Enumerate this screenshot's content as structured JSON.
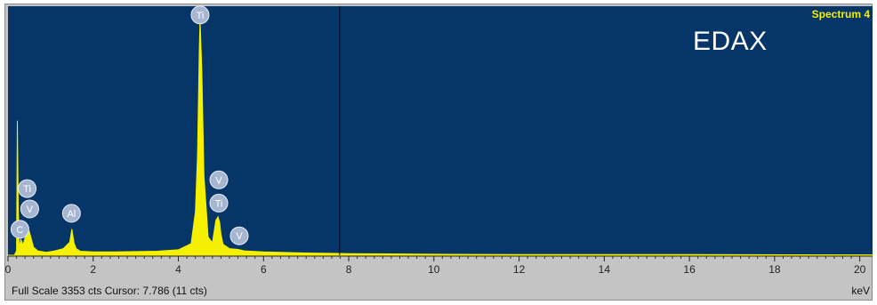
{
  "chart_data": {
    "type": "line",
    "title": "",
    "xlabel": "",
    "ylabel": "",
    "x_unit": "keV",
    "xlim": [
      0,
      20.3
    ],
    "ylim": [
      0,
      3353
    ],
    "xticks": [
      0,
      2,
      4,
      6,
      8,
      10,
      12,
      14,
      16,
      18,
      20
    ],
    "x": [
      0.0,
      0.15,
      0.2,
      0.22,
      0.24,
      0.26,
      0.28,
      0.3,
      0.35,
      0.4,
      0.45,
      0.5,
      0.55,
      0.6,
      0.7,
      0.9,
      1.1,
      1.3,
      1.45,
      1.5,
      1.55,
      1.6,
      1.7,
      2.0,
      2.5,
      3.0,
      3.5,
      4.0,
      4.3,
      4.4,
      4.45,
      4.49,
      4.51,
      4.55,
      4.6,
      4.7,
      4.8,
      4.88,
      4.93,
      4.97,
      5.0,
      5.05,
      5.2,
      5.4,
      5.55,
      6.0,
      7.0,
      8.0,
      9.0,
      10.0,
      12.0,
      16.0,
      20.3
    ],
    "counts": [
      0,
      0,
      60,
      1850,
      700,
      150,
      150,
      220,
      140,
      240,
      280,
      330,
      220,
      110,
      60,
      40,
      60,
      90,
      180,
      360,
      170,
      90,
      55,
      45,
      45,
      50,
      55,
      75,
      160,
      600,
      1400,
      2800,
      3250,
      2550,
      1100,
      250,
      170,
      480,
      530,
      450,
      290,
      150,
      90,
      80,
      60,
      45,
      30,
      22,
      18,
      14,
      10,
      8,
      5
    ],
    "series_color": "#f4f000",
    "cursor_x": 7.786,
    "peak_labels": [
      {
        "element": "Ti",
        "x": 4.51,
        "y": 3270
      },
      {
        "element": "V",
        "x": 4.95,
        "y": 1000
      },
      {
        "element": "Ti",
        "x": 4.95,
        "y": 680
      },
      {
        "element": "V",
        "x": 5.43,
        "y": 230
      },
      {
        "element": "Al",
        "x": 1.49,
        "y": 540
      },
      {
        "element": "Ti",
        "x": 0.45,
        "y": 880
      },
      {
        "element": "V",
        "x": 0.51,
        "y": 600
      },
      {
        "element": "C",
        "x": 0.28,
        "y": 320
      }
    ],
    "grid": false,
    "background": "#063567"
  },
  "labels": {
    "spectrum_name": "Spectrum 4",
    "brand": "EDAX",
    "status": "Full Scale 3353 cts Cursor: 7.786  (11 cts)",
    "unit": "keV"
  }
}
